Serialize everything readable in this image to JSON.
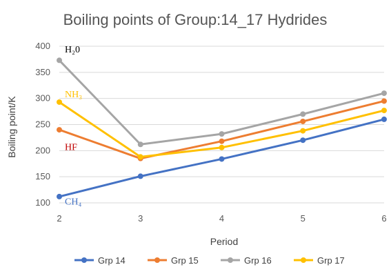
{
  "chart_data": {
    "type": "line",
    "title": "Boiling points of Group:14_17 Hydrides",
    "xlabel": "Period",
    "ylabel": "Boiling point/K",
    "x": [
      "2",
      "3",
      "4",
      "5",
      "6"
    ],
    "ylim": [
      100,
      400
    ],
    "yticks": [
      "100",
      "150",
      "200",
      "250",
      "300",
      "350",
      "400"
    ],
    "grid": true,
    "legend_position": "bottom",
    "series": [
      {
        "name": "Grp 14",
        "color": "#4472C4",
        "values": [
          112,
          151,
          184,
          220,
          260
        ]
      },
      {
        "name": "Grp 15",
        "color": "#ED7D31",
        "values": [
          240,
          185,
          218,
          256,
          295
        ]
      },
      {
        "name": "Grp 16",
        "color": "#A5A5A5",
        "values": [
          373,
          212,
          232,
          270,
          310
        ]
      },
      {
        "name": "Grp 17",
        "color": "#FFC000",
        "values": [
          293,
          188,
          206,
          238,
          277
        ]
      }
    ],
    "annotations": [
      {
        "text": "H₂0",
        "color": "#000000",
        "x": "2",
        "y": 388
      },
      {
        "text": "NH₃",
        "color": "#FFC000",
        "x": "2",
        "y": 302
      },
      {
        "text": "HF",
        "color": "#C00000",
        "x": "2",
        "y": 201
      },
      {
        "text": "CH₄",
        "color": "#4472C4",
        "x": "2",
        "y": 97
      }
    ]
  }
}
